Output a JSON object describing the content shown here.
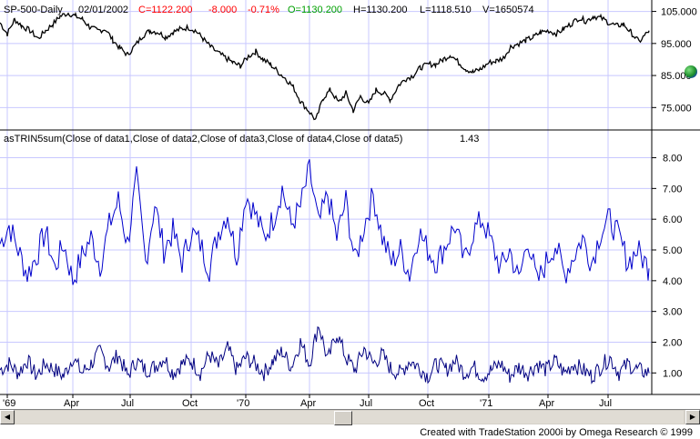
{
  "header": {
    "symbol": "SP-500-Daily",
    "date": "02/01/2002",
    "close": "C=1122.200",
    "change": "-8.000",
    "pct": "-0.71%",
    "open": "O=1130.200",
    "high": "H=1130.200",
    "low": "L=1118.510",
    "volume": "V=1650574"
  },
  "indicator_label": "asTRIN5sum(Close of data1,Close of data2,Close of data3,Close of data4,Close of data5)",
  "indicator_value": "1.43",
  "footer": "Created with TradeStation 2000i by Omega Research © 1999",
  "colors": {
    "price": "#000000",
    "indicator": "#0000cc",
    "lower": "#000080",
    "grid": "#c8c8ff",
    "up_text": "#00a000",
    "down_text": "#ff0000"
  },
  "chart_data": [
    {
      "type": "line",
      "title": "SP-500-Daily",
      "ylim": [
        68000,
        108000
      ],
      "yticks": [
        "105.000",
        "95.000",
        "85.000",
        "75.000"
      ],
      "x_labels": [
        "'69",
        "Apr",
        "Jul",
        "Oct",
        "'70",
        "Apr",
        "Jul",
        "Oct",
        "'71",
        "Apr",
        "Jul"
      ],
      "series": [
        {
          "x": [
            0,
            8,
            16,
            24,
            33,
            42,
            50,
            58,
            66,
            75,
            83,
            91,
            99,
            107,
            116,
            124,
            132,
            140,
            149,
            157,
            165,
            174,
            182,
            190,
            198,
            207,
            215,
            223,
            231,
            240,
            248,
            256,
            264,
            273,
            281,
            289,
            297,
            306,
            314,
            322,
            330,
            339,
            347,
            355,
            363,
            372,
            380,
            388,
            396,
            405,
            413,
            421,
            429,
            438,
            446,
            454,
            462,
            471,
            479,
            487,
            495,
            504,
            512,
            520,
            528,
            537,
            545,
            553,
            561,
            570,
            578,
            586,
            594,
            603,
            611,
            619,
            627,
            636,
            644,
            652,
            660,
            669,
            677,
            685,
            693,
            702,
            713
          ],
          "values": [
            101500,
            98000,
            102500,
            100500,
            99000,
            96500,
            99000,
            101000,
            103500,
            104500,
            103500,
            102500,
            100000,
            99000,
            99500,
            96000,
            93500,
            91500,
            94500,
            97500,
            99000,
            98500,
            97000,
            98500,
            99500,
            100000,
            99000,
            96500,
            94000,
            92000,
            90500,
            89000,
            88000,
            91000,
            92500,
            90000,
            88500,
            86000,
            84000,
            81500,
            77000,
            74000,
            71000,
            78000,
            80500,
            76500,
            79500,
            74000,
            78500,
            76000,
            80500,
            79500,
            77500,
            82000,
            84000,
            85000,
            87500,
            88500,
            88500,
            90000,
            91500,
            89000,
            87000,
            86000,
            87000,
            89000,
            89500,
            90500,
            94000,
            95000,
            96000,
            97000,
            98500,
            99000,
            98000,
            99500,
            101000,
            103000,
            102000,
            103500,
            103000,
            101500,
            100500,
            101000,
            98500,
            95500,
            99000
          ]
        }
      ]
    },
    {
      "type": "line",
      "title": "asTRIN5sum",
      "ylim": [
        0.3,
        8.4
      ],
      "yticks": [
        "8.00",
        "7.00",
        "6.00",
        "5.00",
        "4.00",
        "3.00",
        "2.00",
        "1.00"
      ],
      "series": [
        {
          "name": "asTRIN5sum",
          "x": [
            0,
            10,
            20,
            30,
            40,
            50,
            60,
            70,
            80,
            90,
            100,
            110,
            120,
            130,
            140,
            150,
            160,
            170,
            180,
            190,
            200,
            210,
            220,
            230,
            240,
            250,
            260,
            270,
            280,
            290,
            300,
            310,
            320,
            330,
            340,
            350,
            360,
            370,
            380,
            390,
            400,
            410,
            420,
            430,
            440,
            450,
            460,
            470,
            480,
            490,
            500,
            510,
            520,
            530,
            540,
            550,
            560,
            570,
            580,
            590,
            600,
            610,
            620,
            630,
            640,
            650,
            660,
            670,
            680,
            690,
            700,
            713
          ],
          "values": [
            5.2,
            5.8,
            5.0,
            4.2,
            4.8,
            5.6,
            4.4,
            5.2,
            4.0,
            4.8,
            5.4,
            4.5,
            5.8,
            6.6,
            5.2,
            7.3,
            4.6,
            6.5,
            5.0,
            5.6,
            4.6,
            5.6,
            5.2,
            4.4,
            5.6,
            6.2,
            4.8,
            6.8,
            6.2,
            5.4,
            6.0,
            7.0,
            5.8,
            6.4,
            7.6,
            5.8,
            6.8,
            5.4,
            6.6,
            4.6,
            5.8,
            6.8,
            5.4,
            4.6,
            5.0,
            4.2,
            5.6,
            5.0,
            4.6,
            5.2,
            5.8,
            4.6,
            5.6,
            6.0,
            5.2,
            4.4,
            5.0,
            4.0,
            5.4,
            3.9,
            4.6,
            5.2,
            4.2,
            4.8,
            5.4,
            4.6,
            5.6,
            6.0,
            5.4,
            4.6,
            5.0,
            4.4
          ]
        },
        {
          "name": "lower",
          "x": [
            0,
            10,
            20,
            30,
            40,
            50,
            60,
            70,
            80,
            90,
            100,
            110,
            120,
            130,
            140,
            150,
            160,
            170,
            180,
            190,
            200,
            210,
            220,
            230,
            240,
            250,
            260,
            270,
            280,
            290,
            300,
            310,
            320,
            330,
            340,
            350,
            360,
            370,
            380,
            390,
            400,
            410,
            420,
            430,
            440,
            450,
            460,
            470,
            480,
            490,
            500,
            510,
            520,
            530,
            540,
            550,
            560,
            570,
            580,
            590,
            600,
            610,
            620,
            630,
            640,
            650,
            660,
            670,
            680,
            690,
            700,
            713
          ],
          "values": [
            1.1,
            1.3,
            1.0,
            1.4,
            0.9,
            1.3,
            1.1,
            0.9,
            1.5,
            1.0,
            1.3,
            1.7,
            1.2,
            1.6,
            0.9,
            1.4,
            1.1,
            1.2,
            1.5,
            1.0,
            1.3,
            1.4,
            1.0,
            1.6,
            1.2,
            1.8,
            1.1,
            1.5,
            1.3,
            1.0,
            1.4,
            1.7,
            1.2,
            2.0,
            1.3,
            2.6,
            1.4,
            2.3,
            1.5,
            1.1,
            1.8,
            1.3,
            1.6,
            1.1,
            1.0,
            1.4,
            1.2,
            0.9,
            1.3,
            1.1,
            1.4,
            1.0,
            1.2,
            0.9,
            1.1,
            1.3,
            0.9,
            1.2,
            1.0,
            1.3,
            1.1,
            1.4,
            1.0,
            1.3,
            1.1,
            0.9,
            1.2,
            1.5,
            1.0,
            1.3,
            1.1,
            1.0
          ]
        }
      ]
    }
  ]
}
